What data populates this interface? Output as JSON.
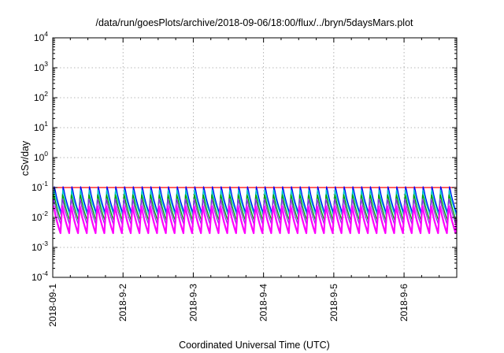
{
  "chart_data": {
    "type": "line",
    "title": "/data/run/goesPlots/archive/2018-09-06/18:00/flux/../bryn/5daysMars.plot",
    "xlabel": "Coordinated Universal Time (UTC)",
    "ylabel": "cSv/day",
    "yscale": "log",
    "ylim": [
      0.0001,
      10000
    ],
    "xlim": [
      "2018-09-01T00:00",
      "2018-09-06T18:00"
    ],
    "x_ticks": [
      "2018-09-1",
      "2018-9-2",
      "2018-9-3",
      "2018-9-4",
      "2018-9-5",
      "2018-9-6"
    ],
    "y_ticks": [
      {
        "base": "10",
        "exp": "-4"
      },
      {
        "base": "10",
        "exp": "-3"
      },
      {
        "base": "10",
        "exp": "-2"
      },
      {
        "base": "10",
        "exp": "-1"
      },
      {
        "base": "10",
        "exp": "0"
      },
      {
        "base": "10",
        "exp": "1"
      },
      {
        "base": "10",
        "exp": "2"
      },
      {
        "base": "10",
        "exp": "3"
      },
      {
        "base": "10",
        "exp": "4"
      }
    ],
    "grid": true,
    "legend": "none",
    "pattern": {
      "cycle_hours": 3,
      "range_start": "2018-09-01T00:00",
      "range_end": "2018-09-06T18:00"
    },
    "series": [
      {
        "color": "#ff0000",
        "peak": 0.1,
        "trough": 0.1
      },
      {
        "color": "#0000ff",
        "peak": 0.13,
        "trough": 0.014
      },
      {
        "color": "#00c8c8",
        "peak": 0.1,
        "trough": 0.012
      },
      {
        "color": "#00a000",
        "peak": 0.07,
        "trough": 0.008
      },
      {
        "color": "#8a2be2",
        "peak": 0.05,
        "trough": 0.006
      },
      {
        "color": "#ff00ff",
        "peak": 0.03,
        "trough": 0.003
      }
    ]
  }
}
